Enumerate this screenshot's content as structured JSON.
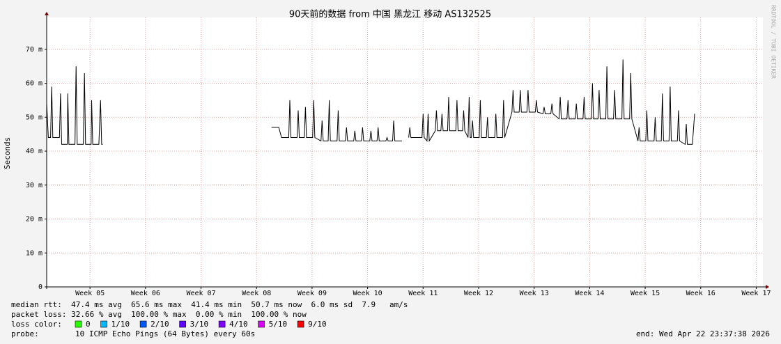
{
  "chart_data": {
    "type": "line",
    "title": "90天前的数据 from 中国 黑龙江 移动 AS132525",
    "y_label": "Seconds",
    "watermark": "RRDTOOL / TOBI OETIKER",
    "color": "#000000",
    "grid": true,
    "xlim": [
      4.22,
      17.12
    ],
    "xticks": [
      {
        "value": 5,
        "label": "Week 05"
      },
      {
        "value": 6,
        "label": "Week 06"
      },
      {
        "value": 7,
        "label": "Week 07"
      },
      {
        "value": 8,
        "label": "Week 08"
      },
      {
        "value": 9,
        "label": "Week 09"
      },
      {
        "value": 10,
        "label": "Week 10"
      },
      {
        "value": 11,
        "label": "Week 11"
      },
      {
        "value": 12,
        "label": "Week 12"
      },
      {
        "value": 13,
        "label": "Week 13"
      },
      {
        "value": 14,
        "label": "Week 14"
      },
      {
        "value": 15,
        "label": "Week 15"
      },
      {
        "value": 16,
        "label": "Week 16"
      },
      {
        "value": 17,
        "label": "Week 17"
      }
    ],
    "ylim": [
      0,
      0.0794
    ],
    "yticks": [
      0,
      {
        "value": 0.01,
        "label": "10 m"
      },
      {
        "value": 0.02,
        "label": "20 m"
      },
      {
        "value": 0.03,
        "label": "30 m"
      },
      {
        "value": 0.04,
        "label": "40 m"
      },
      {
        "value": 0.05,
        "label": "50 m"
      },
      {
        "value": 0.06,
        "label": "60 m"
      },
      {
        "value": 0.07,
        "label": "70 m"
      }
    ],
    "x": [
      4.22,
      4.25,
      4.29,
      4.31,
      4.33,
      4.4,
      4.45,
      4.47,
      4.49,
      4.56,
      4.59,
      4.6,
      4.62,
      4.7,
      4.73,
      4.75,
      4.77,
      4.86,
      4.88,
      4.9,
      4.92,
      5.0,
      5.02,
      5.03,
      5.05,
      5.13,
      5.16,
      5.19,
      5.21,
      5.23,
      6.5,
      8.27,
      8.4,
      8.45,
      8.58,
      8.6,
      8.62,
      8.73,
      8.75,
      8.77,
      8.86,
      8.88,
      8.9,
      9.01,
      9.03,
      9.05,
      9.16,
      9.18,
      9.2,
      9.29,
      9.31,
      9.33,
      9.45,
      9.47,
      9.49,
      9.6,
      9.62,
      9.64,
      9.75,
      9.77,
      9.79,
      9.89,
      9.91,
      9.93,
      10.04,
      10.06,
      10.08,
      10.17,
      10.19,
      10.21,
      10.33,
      10.35,
      10.37,
      10.45,
      10.47,
      10.49,
      10.55,
      10.62,
      10.69,
      10.74,
      10.76,
      10.78,
      10.98,
      11.0,
      11.02,
      11.07,
      11.09,
      11.11,
      11.22,
      11.24,
      11.26,
      11.32,
      11.34,
      11.36,
      11.44,
      11.46,
      11.48,
      11.59,
      11.61,
      11.63,
      11.71,
      11.73,
      11.75,
      11.81,
      11.83,
      11.85,
      11.87,
      11.89,
      11.91,
      12.01,
      12.03,
      12.05,
      12.14,
      12.16,
      12.18,
      12.29,
      12.31,
      12.33,
      12.43,
      12.45,
      12.47,
      12.6,
      12.62,
      12.64,
      12.73,
      12.75,
      12.77,
      12.87,
      12.89,
      12.91,
      13.02,
      13.04,
      13.06,
      13.16,
      13.18,
      13.2,
      13.3,
      13.32,
      13.34,
      13.45,
      13.47,
      13.49,
      13.59,
      13.61,
      13.63,
      13.74,
      13.76,
      13.78,
      13.88,
      13.9,
      13.92,
      14.03,
      14.05,
      14.07,
      14.15,
      14.17,
      14.19,
      14.29,
      14.31,
      14.33,
      14.43,
      14.45,
      14.47,
      14.58,
      14.6,
      14.62,
      14.72,
      14.74,
      14.76,
      14.87,
      14.89,
      14.91,
      15.01,
      15.03,
      15.05,
      15.16,
      15.18,
      15.2,
      15.29,
      15.31,
      15.33,
      15.43,
      15.45,
      15.47,
      15.58,
      15.6,
      15.62,
      15.72,
      15.74,
      15.76,
      15.85,
      15.89
    ],
    "values": [
      0.054,
      0.044,
      0.044,
      0.059,
      0.044,
      0.044,
      0.044,
      0.057,
      0.042,
      0.042,
      0.042,
      0.057,
      0.042,
      0.042,
      0.042,
      0.065,
      0.042,
      0.042,
      0.042,
      0.063,
      0.042,
      0.042,
      0.042,
      0.055,
      0.042,
      0.042,
      0.042,
      0.055,
      0.042,
      0.042,
      null,
      0.047,
      0.047,
      0.044,
      0.044,
      0.055,
      0.044,
      0.044,
      0.052,
      0.044,
      0.044,
      0.053,
      0.044,
      0.044,
      0.055,
      0.044,
      0.043,
      0.049,
      0.043,
      0.043,
      0.055,
      0.043,
      0.043,
      0.052,
      0.043,
      0.043,
      0.047,
      0.043,
      0.043,
      0.046,
      0.043,
      0.043,
      0.047,
      0.043,
      0.043,
      0.046,
      0.043,
      0.043,
      0.047,
      0.043,
      0.043,
      0.044,
      0.043,
      0.043,
      0.049,
      0.043,
      0.043,
      0.043,
      null,
      0.044,
      0.047,
      0.044,
      0.044,
      0.051,
      0.044,
      0.043,
      0.051,
      0.043,
      0.046,
      0.052,
      0.046,
      0.046,
      0.051,
      0.046,
      0.046,
      0.056,
      0.046,
      0.046,
      0.055,
      0.046,
      0.046,
      0.052,
      0.046,
      0.044,
      0.056,
      0.044,
      0.044,
      0.049,
      0.044,
      0.044,
      0.055,
      0.044,
      0.044,
      0.05,
      0.044,
      0.044,
      0.051,
      0.044,
      0.044,
      0.055,
      0.044,
      0.0515,
      0.058,
      0.0515,
      0.0515,
      0.058,
      0.0515,
      0.0515,
      0.058,
      0.0515,
      0.0515,
      0.055,
      0.0515,
      0.051,
      0.053,
      0.051,
      0.051,
      0.054,
      0.051,
      0.0495,
      0.056,
      0.0495,
      0.0495,
      0.055,
      0.0495,
      0.0495,
      0.054,
      0.0495,
      0.0495,
      0.056,
      0.0495,
      0.0495,
      0.06,
      0.0495,
      0.0495,
      0.058,
      0.0495,
      0.0495,
      0.065,
      0.0495,
      0.0495,
      0.058,
      0.0495,
      0.0495,
      0.067,
      0.0495,
      0.0495,
      0.063,
      0.0495,
      0.043,
      0.047,
      0.043,
      0.043,
      0.052,
      0.043,
      0.043,
      0.05,
      0.043,
      0.043,
      0.057,
      0.043,
      0.043,
      0.059,
      0.043,
      0.043,
      0.052,
      0.043,
      0.042,
      0.048,
      0.042,
      0.042,
      0.051
    ],
    "stats": [
      "median rtt:  47.4 ms avg  65.6 ms max  41.4 ms min  50.7 ms now  6.0 ms sd  7.9   am/s",
      "packet loss: 32.66 % avg  100.00 % max  0.00 % min  100.00 % now"
    ],
    "loss_label": "loss color:",
    "loss_colors": [
      {
        "name": "0",
        "color": "#26ff00"
      },
      {
        "name": "1/10",
        "color": "#00b8ff"
      },
      {
        "name": "2/10",
        "color": "#0059ff"
      },
      {
        "name": "3/10",
        "color": "#5e00ff"
      },
      {
        "name": "4/10",
        "color": "#7e00ff"
      },
      {
        "name": "5/10",
        "color": "#dd00ff"
      },
      {
        "name": "9/10",
        "color": "#ff0000"
      }
    ],
    "probe_label": "probe:",
    "probe": "10 ICMP Echo Pings (64 Bytes) every 60s",
    "end": "end: Wed Apr 22 23:37:38 2026"
  }
}
